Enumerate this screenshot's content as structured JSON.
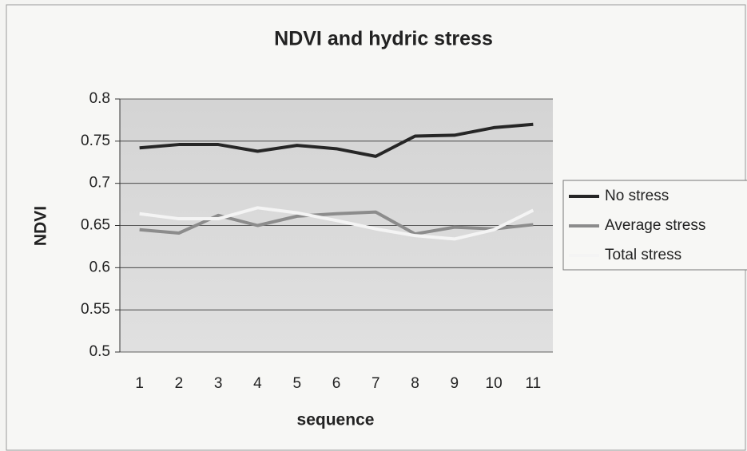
{
  "chart_data": {
    "type": "line",
    "title": "NDVI and hydric stress",
    "x_label": "sequence",
    "y_label": "NDVI",
    "categories": [
      "1",
      "2",
      "3",
      "4",
      "5",
      "6",
      "7",
      "8",
      "9",
      "10",
      "11"
    ],
    "series": [
      {
        "name": "No stress",
        "color": "#262626",
        "values": [
          0.742,
          0.746,
          0.746,
          0.738,
          0.745,
          0.741,
          0.732,
          0.756,
          0.757,
          0.766,
          0.77
        ]
      },
      {
        "name": "Average stress",
        "color": "#8c8c8c",
        "values": [
          0.645,
          0.641,
          0.662,
          0.65,
          0.661,
          0.664,
          0.666,
          0.64,
          0.648,
          0.646,
          0.651
        ]
      },
      {
        "name": "Total stress",
        "color": "#f4f4f4",
        "values": [
          0.664,
          0.658,
          0.658,
          0.671,
          0.665,
          0.656,
          0.646,
          0.638,
          0.634,
          0.645,
          0.668
        ]
      }
    ],
    "ylim": [
      0.5,
      0.8
    ],
    "yticks": [
      0.5,
      0.55,
      0.6,
      0.65,
      0.7,
      0.75,
      0.8
    ],
    "grid": true,
    "legend": "right"
  }
}
